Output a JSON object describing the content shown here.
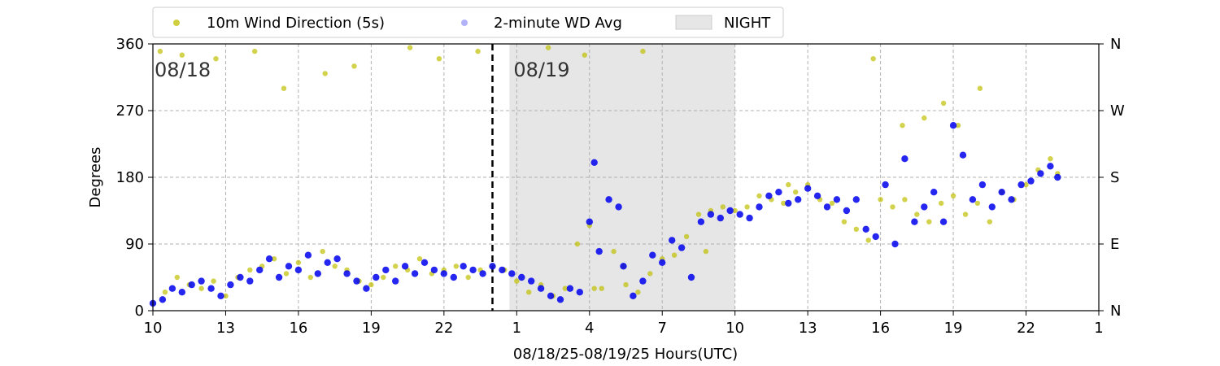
{
  "chart_data": {
    "type": "scatter",
    "xlabel": "08/18/25-08/19/25  Hours(UTC)",
    "ylabel": "Degrees",
    "xlim": [
      10,
      49
    ],
    "ylim": [
      0,
      360
    ],
    "x_ticks": [
      {
        "value": 10,
        "label": "10"
      },
      {
        "value": 13,
        "label": "13"
      },
      {
        "value": 16,
        "label": "16"
      },
      {
        "value": 19,
        "label": "19"
      },
      {
        "value": 22,
        "label": "22"
      },
      {
        "value": 25,
        "label": "1"
      },
      {
        "value": 28,
        "label": "4"
      },
      {
        "value": 31,
        "label": "7"
      },
      {
        "value": 34,
        "label": "10"
      },
      {
        "value": 37,
        "label": "13"
      },
      {
        "value": 40,
        "label": "16"
      },
      {
        "value": 43,
        "label": "19"
      },
      {
        "value": 46,
        "label": "22"
      },
      {
        "value": 49,
        "label": "1"
      }
    ],
    "y_ticks": [
      {
        "value": 0,
        "label": "0"
      },
      {
        "value": 90,
        "label": "90"
      },
      {
        "value": 180,
        "label": "180"
      },
      {
        "value": 270,
        "label": "270"
      },
      {
        "value": 360,
        "label": "360"
      }
    ],
    "y2_ticks": [
      {
        "value": 0,
        "label": "N"
      },
      {
        "value": 90,
        "label": "E"
      },
      {
        "value": 180,
        "label": "S"
      },
      {
        "value": 270,
        "label": "W"
      },
      {
        "value": 360,
        "label": "N"
      }
    ],
    "grid": true,
    "legend_position": "top-left, above plot",
    "night_band": {
      "label": "NIGHT",
      "start": 24.7,
      "end": 34,
      "color": "#e6e6e6"
    },
    "day_divider": {
      "x": 24,
      "style": "dashed",
      "color": "#000000"
    },
    "day_labels": [
      {
        "x": 10,
        "text": "08/18"
      },
      {
        "x": 24.8,
        "text": "08/19"
      }
    ],
    "series": [
      {
        "name": "10m Wind Direction (5s)",
        "color": "#bfbf00",
        "x": [
          10.0,
          10.5,
          11.0,
          11.5,
          12.0,
          12.5,
          13.0,
          13.5,
          14.0,
          14.5,
          15.0,
          15.5,
          16.0,
          16.5,
          17.0,
          17.5,
          18.0,
          18.5,
          19.0,
          19.5,
          20.0,
          20.5,
          21.0,
          21.5,
          22.0,
          22.5,
          23.0,
          23.5,
          24.0,
          24.5,
          25.0,
          25.5,
          26.0,
          26.5,
          27.0,
          27.5,
          28.0,
          28.5,
          29.0,
          29.5,
          30.0,
          30.5,
          31.0,
          31.5,
          32.0,
          32.5,
          33.0,
          33.5,
          34.0,
          34.5,
          35.0,
          35.5,
          36.0,
          36.5,
          37.0,
          37.5,
          38.0,
          38.5,
          39.0,
          39.5,
          40.0,
          40.5,
          41.0,
          41.5,
          42.0,
          42.5,
          43.0,
          43.5,
          44.0,
          44.5,
          45.0,
          45.5,
          46.0,
          46.5,
          47.0,
          47.3,
          10.3,
          11.2,
          12.6,
          14.2,
          15.4,
          17.1,
          18.3,
          20.6,
          21.8,
          23.4,
          26.3,
          27.8,
          28.2,
          29.4,
          30.2,
          32.8,
          36.2,
          39.7,
          40.9,
          41.8,
          42.6,
          43.2,
          44.1
        ],
        "y": [
          10,
          25,
          45,
          35,
          30,
          40,
          20,
          45,
          55,
          60,
          70,
          50,
          65,
          45,
          80,
          60,
          55,
          40,
          35,
          45,
          60,
          55,
          70,
          50,
          55,
          60,
          45,
          55,
          60,
          55,
          40,
          25,
          35,
          20,
          30,
          90,
          115,
          30,
          80,
          35,
          25,
          50,
          70,
          75,
          100,
          130,
          135,
          140,
          135,
          140,
          155,
          150,
          145,
          160,
          170,
          150,
          145,
          120,
          110,
          95,
          150,
          140,
          150,
          130,
          120,
          145,
          155,
          130,
          145,
          120,
          160,
          150,
          170,
          190,
          205,
          185,
          350,
          345,
          340,
          350,
          300,
          320,
          330,
          355,
          340,
          350,
          355,
          345,
          30,
          60,
          350,
          80,
          170,
          340,
          250,
          260,
          280,
          250,
          300
        ]
      },
      {
        "name": "2-minute WD Avg",
        "color": "#0000ee",
        "x": [
          10.0,
          10.4,
          10.8,
          11.2,
          11.6,
          12.0,
          12.4,
          12.8,
          13.2,
          13.6,
          14.0,
          14.4,
          14.8,
          15.2,
          15.6,
          16.0,
          16.4,
          16.8,
          17.2,
          17.6,
          18.0,
          18.4,
          18.8,
          19.2,
          19.6,
          20.0,
          20.4,
          20.8,
          21.2,
          21.6,
          22.0,
          22.4,
          22.8,
          23.2,
          23.6,
          24.0,
          24.4,
          24.8,
          25.2,
          25.6,
          26.0,
          26.4,
          26.8,
          27.2,
          27.6,
          28.0,
          28.2,
          28.4,
          28.8,
          29.2,
          29.4,
          29.8,
          30.2,
          30.6,
          31.0,
          31.4,
          31.8,
          32.2,
          32.6,
          33.0,
          33.4,
          33.8,
          34.2,
          34.6,
          35.0,
          35.4,
          35.8,
          36.2,
          36.6,
          37.0,
          37.4,
          37.8,
          38.2,
          38.6,
          39.0,
          39.4,
          39.8,
          40.2,
          40.6,
          41.0,
          41.4,
          41.8,
          42.2,
          42.6,
          43.0,
          43.4,
          43.8,
          44.2,
          44.6,
          45.0,
          45.4,
          45.8,
          46.2,
          46.6,
          47.0,
          47.3
        ],
        "y": [
          10,
          15,
          30,
          25,
          35,
          40,
          30,
          20,
          35,
          45,
          40,
          55,
          70,
          45,
          60,
          55,
          75,
          50,
          65,
          70,
          50,
          40,
          30,
          45,
          55,
          40,
          60,
          50,
          65,
          55,
          50,
          45,
          60,
          55,
          50,
          60,
          55,
          50,
          45,
          40,
          30,
          20,
          15,
          30,
          25,
          120,
          200,
          80,
          150,
          140,
          60,
          20,
          40,
          75,
          65,
          95,
          85,
          45,
          120,
          130,
          125,
          135,
          130,
          125,
          140,
          155,
          160,
          145,
          150,
          165,
          155,
          140,
          150,
          135,
          150,
          110,
          100,
          170,
          90,
          205,
          120,
          140,
          160,
          120,
          250,
          210,
          150,
          170,
          140,
          160,
          150,
          170,
          175,
          185,
          195,
          180
        ]
      }
    ]
  }
}
